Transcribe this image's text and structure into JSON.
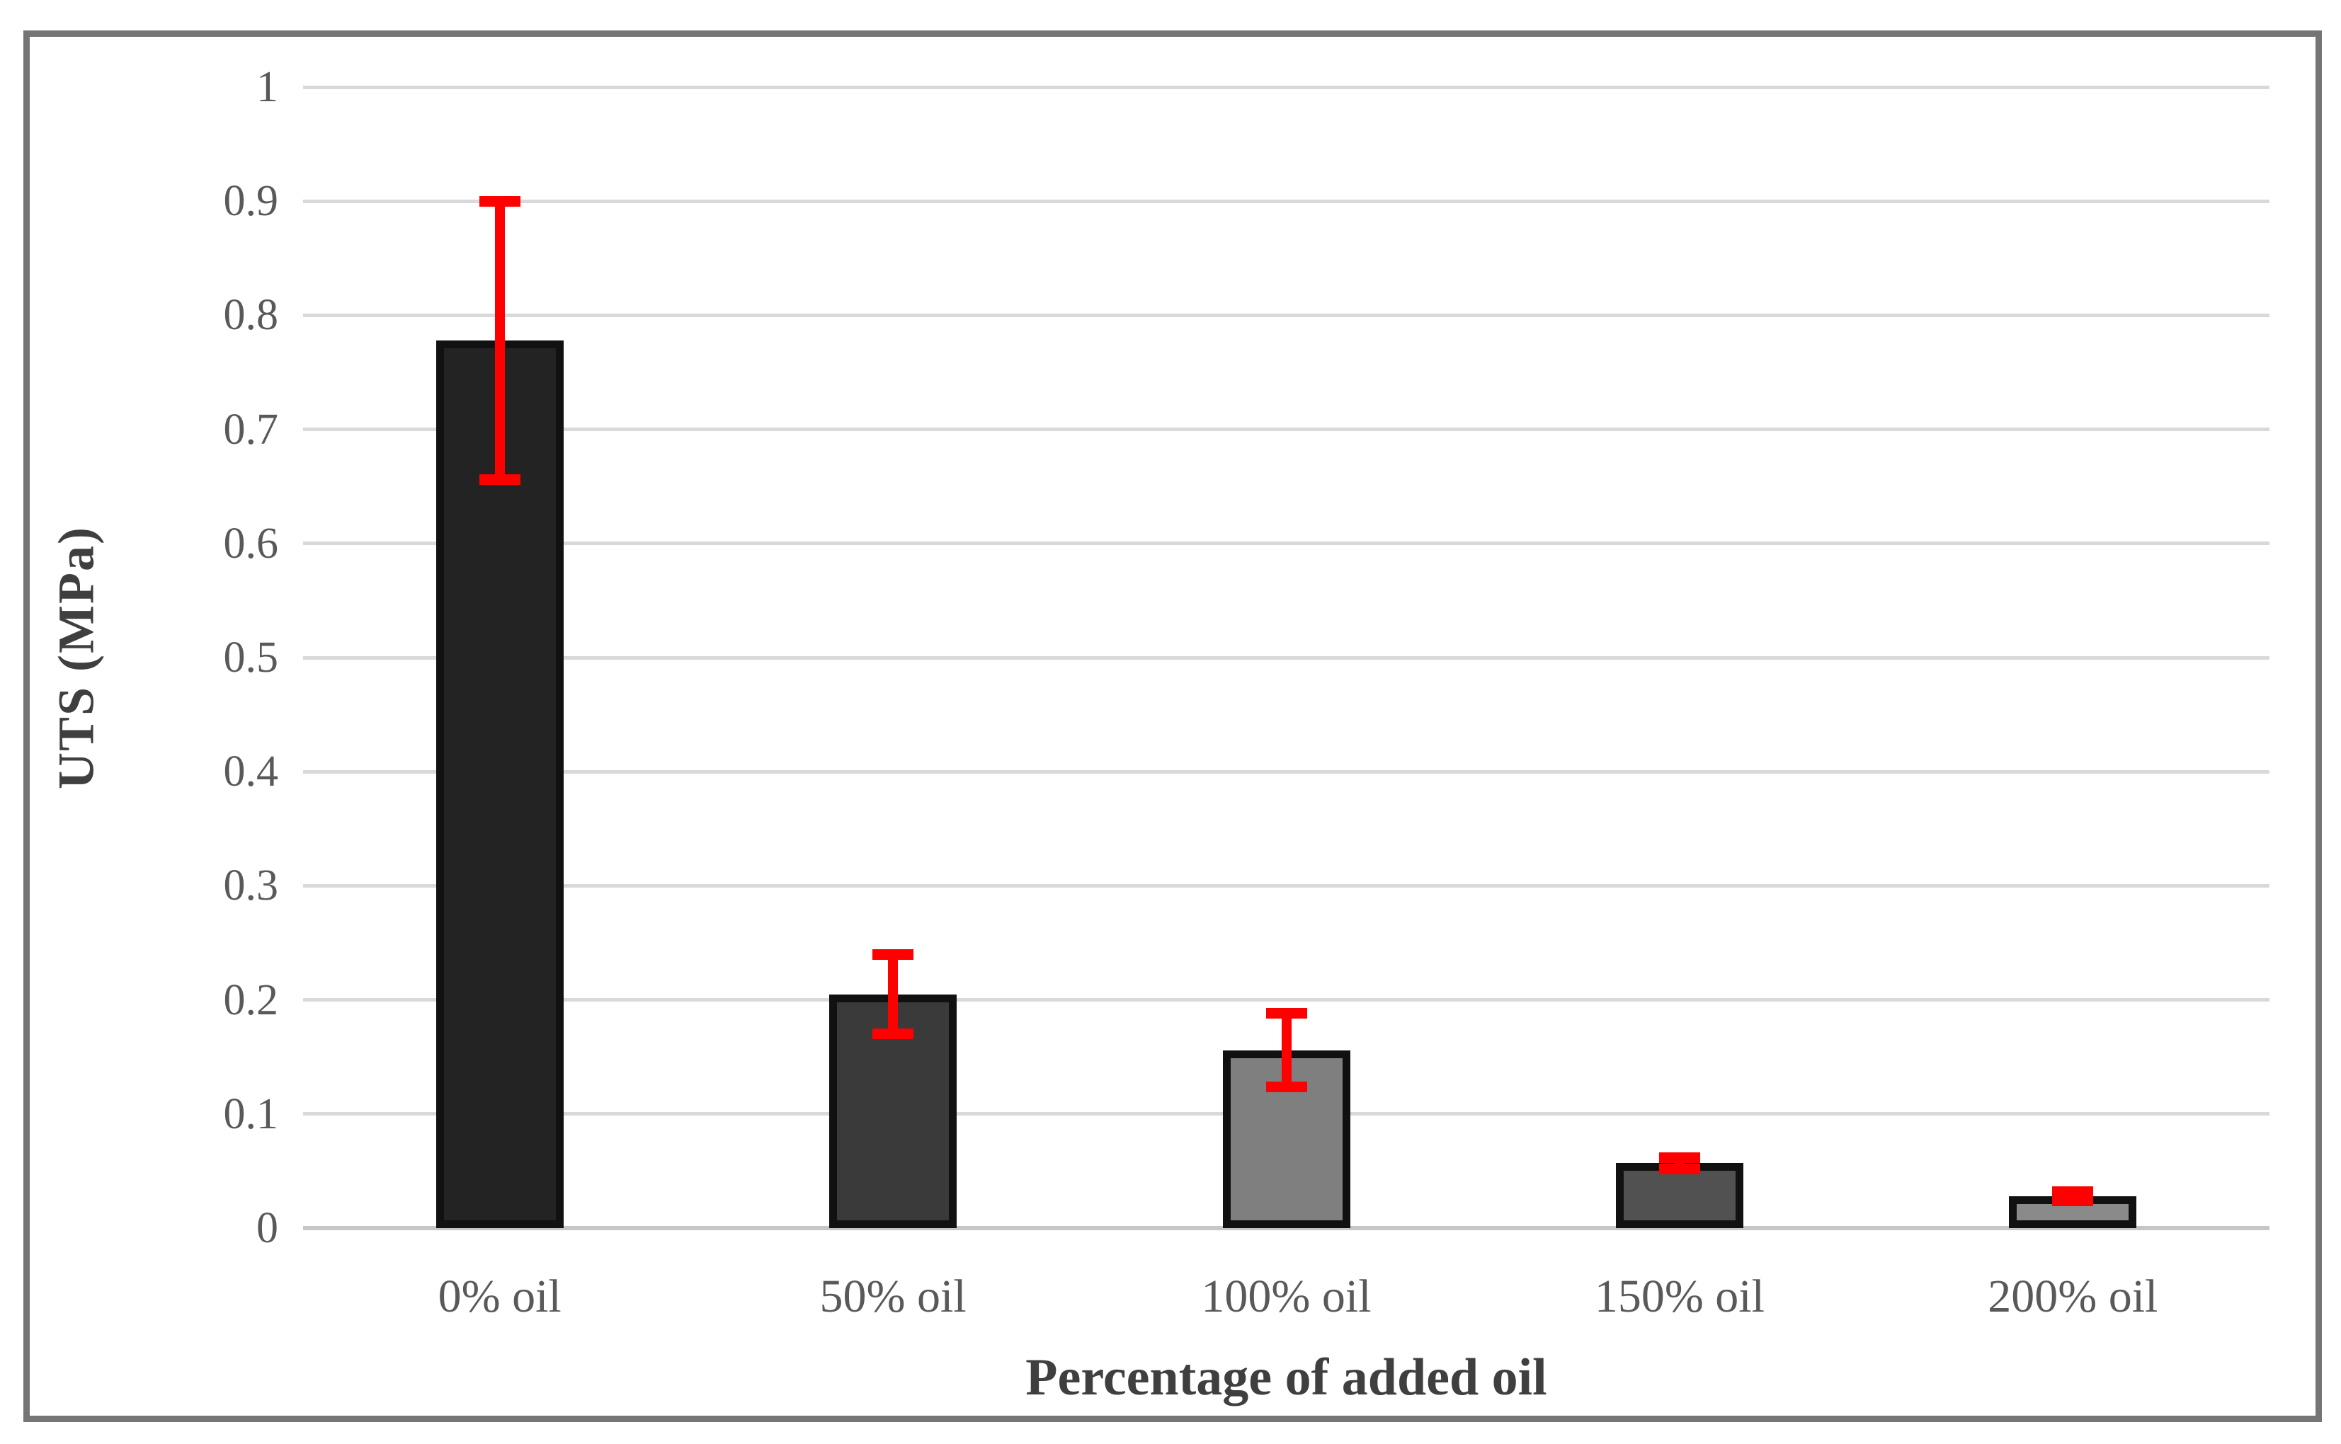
{
  "chart_data": {
    "type": "bar",
    "title": "",
    "xlabel": "Percentage of added oil",
    "ylabel": "UTS (MPa)",
    "categories": [
      "0% oil",
      "50% oil",
      "100% oil",
      "150% oil",
      "200% oil"
    ],
    "values": [
      0.778,
      0.205,
      0.156,
      0.057,
      0.028
    ],
    "error_bars": [
      0.122,
      0.035,
      0.032,
      0.005,
      0.004
    ],
    "bar_colors": [
      "#232323",
      "#3a3a3a",
      "#7f7f7f",
      "#515151",
      "#8a8a8a"
    ],
    "bar_border_color": "#111111",
    "error_bar_color": "#fe0000",
    "ylim": [
      0,
      1
    ],
    "ytick_step": 0.1,
    "ytick_labels": [
      "0",
      "0.1",
      "0.2",
      "0.3",
      "0.4",
      "0.5",
      "0.6",
      "0.7",
      "0.8",
      "0.9",
      "1"
    ],
    "grid": true,
    "legend": "none",
    "gridline_color": "#d9d9d9",
    "axis_line_color": "#c6c6c6",
    "tick_text_color": "#595959",
    "axis_title_color": "#3f3f3f",
    "frame_border_color": "#757575"
  }
}
